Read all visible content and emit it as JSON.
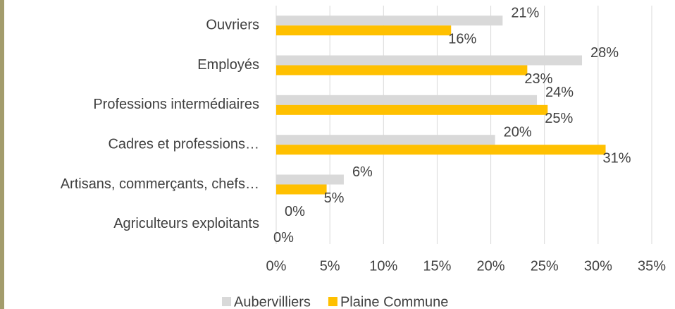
{
  "chart_data": {
    "type": "bar",
    "orientation": "horizontal",
    "categories": [
      "Ouvriers",
      "Employés",
      "Professions intermédiaires",
      "Cadres et professions…",
      "Artisans, commerçants, chefs…",
      "Agriculteurs exploitants"
    ],
    "series": [
      {
        "name": "Aubervilliers",
        "color": "#d9d9d9",
        "values": [
          21.1,
          28.5,
          24.3,
          20.4,
          6.3,
          0
        ],
        "value_labels": [
          "21%",
          "28%",
          "24%",
          "20%",
          "6%",
          "0%"
        ]
      },
      {
        "name": "Plaine Commune",
        "color": "#ffc000",
        "values": [
          16.3,
          23.4,
          25.3,
          30.7,
          4.7,
          0
        ],
        "value_labels": [
          "16%",
          "23%",
          "25%",
          "31%",
          "5%",
          "0%"
        ]
      }
    ],
    "xlim": [
      0,
      35
    ],
    "xticks": [
      {
        "value": 0,
        "label": "0%"
      },
      {
        "value": 5,
        "label": "5%"
      },
      {
        "value": 10,
        "label": "10%"
      },
      {
        "value": 15,
        "label": "15%"
      },
      {
        "value": 20,
        "label": "20%"
      },
      {
        "value": 25,
        "label": "25%"
      },
      {
        "value": 30,
        "label": "30%"
      },
      {
        "value": 35,
        "label": "35%"
      }
    ],
    "grid": true,
    "legend": "bottom"
  }
}
